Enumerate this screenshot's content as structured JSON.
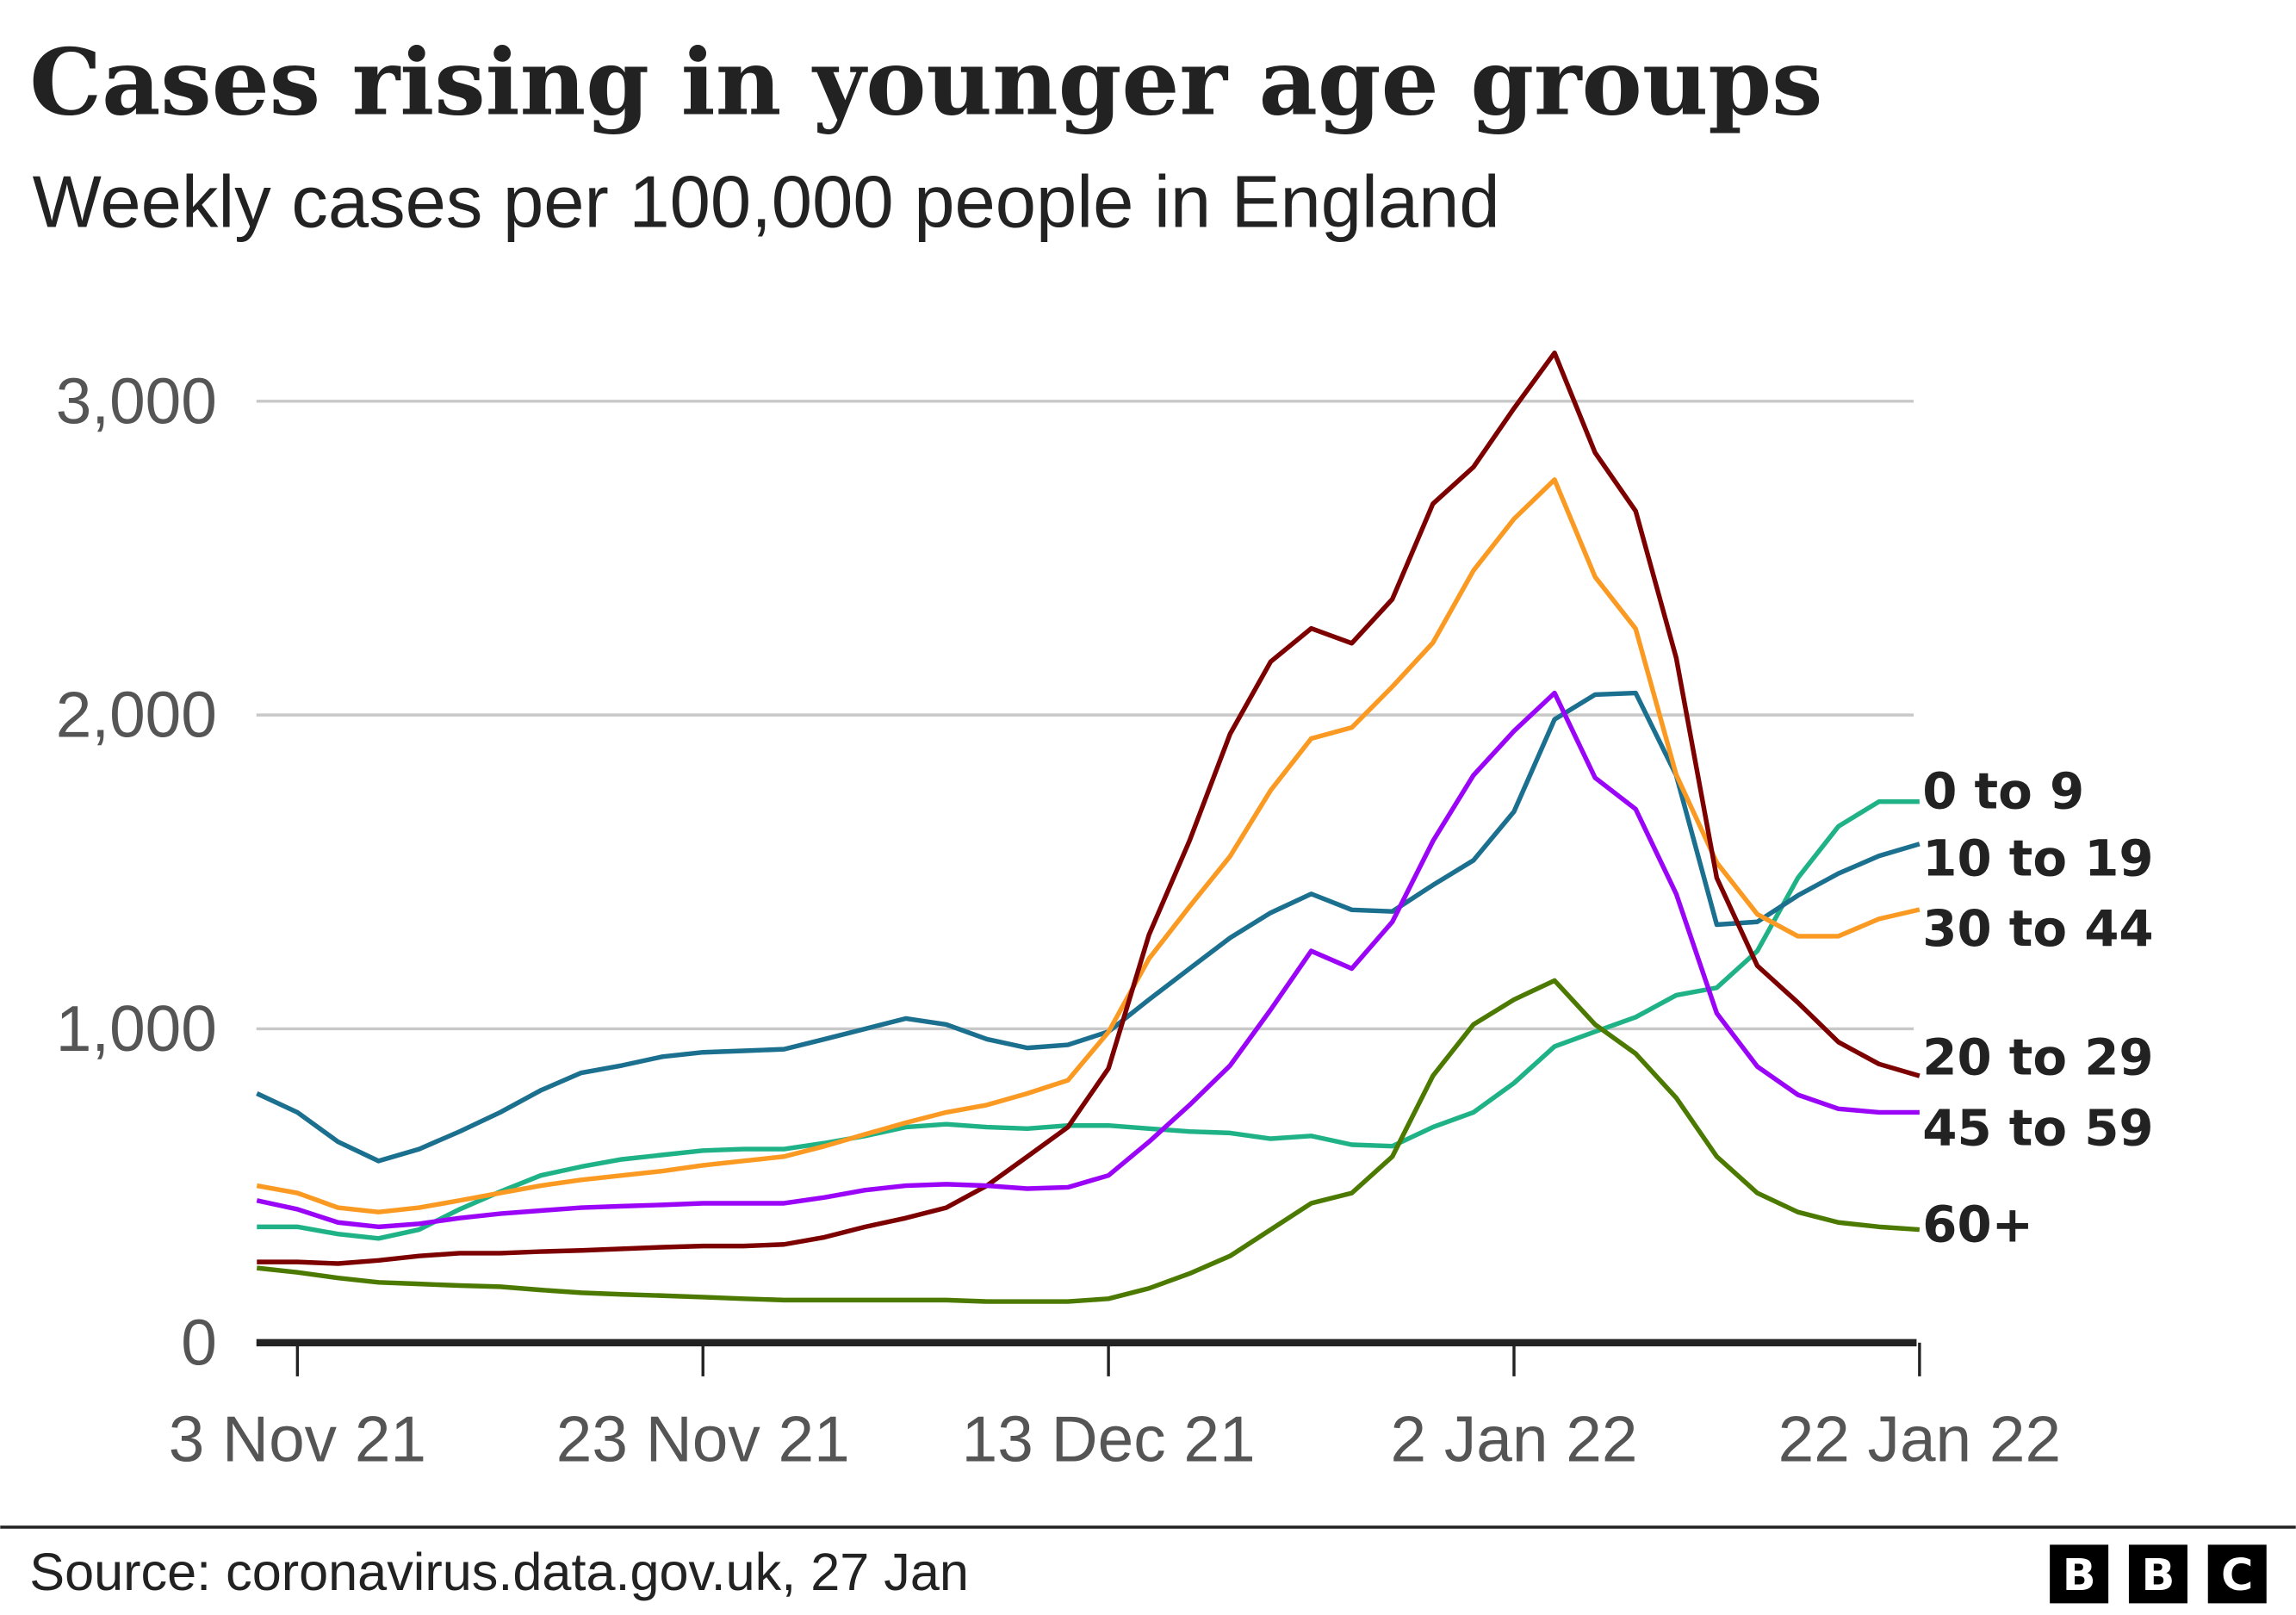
{
  "header": {
    "title": "Cases rising in younger age groups",
    "subtitle": "Weekly cases per 100,000 people in England"
  },
  "footer": {
    "source": "Source: coronavirus.data.gov.uk, 27 Jan",
    "logo_letters": [
      "B",
      "B",
      "C"
    ]
  },
  "chart_data": {
    "type": "line",
    "title": "Cases rising in younger age groups",
    "subtitle": "Weekly cases per 100,000 people in England",
    "xlabel": "",
    "ylabel": "",
    "ylim": [
      0,
      3000
    ],
    "yticks": [
      0,
      1000,
      2000,
      3000
    ],
    "ytick_labels": [
      "0",
      "1,000",
      "2,000",
      "3,000"
    ],
    "xticks": [
      "2021-11-03",
      "2021-11-23",
      "2021-12-13",
      "2022-01-02",
      "2022-01-22"
    ],
    "xtick_labels": [
      "3 Nov 21",
      "23 Nov 21",
      "13 Dec 21",
      "2 Jan 22",
      "22 Jan 22"
    ],
    "grid": "horizontal",
    "legend": "direct labels at right",
    "x": [
      "2021-11-01",
      "2021-11-03",
      "2021-11-05",
      "2021-11-07",
      "2021-11-09",
      "2021-11-11",
      "2021-11-13",
      "2021-11-15",
      "2021-11-17",
      "2021-11-19",
      "2021-11-21",
      "2021-11-23",
      "2021-11-25",
      "2021-11-27",
      "2021-11-29",
      "2021-12-01",
      "2021-12-03",
      "2021-12-05",
      "2021-12-07",
      "2021-12-09",
      "2021-12-11",
      "2021-12-13",
      "2021-12-15",
      "2021-12-17",
      "2021-12-19",
      "2021-12-21",
      "2021-12-23",
      "2021-12-25",
      "2021-12-27",
      "2021-12-29",
      "2021-12-31",
      "2022-01-02",
      "2022-01-04",
      "2022-01-06",
      "2022-01-08",
      "2022-01-10",
      "2022-01-12",
      "2022-01-14",
      "2022-01-16",
      "2022-01-18",
      "2022-01-20",
      "2022-01-22"
    ],
    "series": [
      {
        "name": "0 to 9",
        "color": "#1fb287",
        "values": [
          369,
          369,
          346,
          332,
          360,
          425,
          481,
          533,
          561,
          584,
          598,
          612,
          617,
          617,
          636,
          659,
          687,
          696,
          687,
          682,
          692,
          692,
          682,
          673,
          668,
          650,
          659,
          631,
          626,
          687,
          734,
          827,
          944,
          991,
          1037,
          1107,
          1131,
          1248,
          1481,
          1645,
          1724,
          1724
        ]
      },
      {
        "name": "10 to 19",
        "color": "#1b6f8f",
        "values": [
          794,
          734,
          640,
          579,
          617,
          673,
          734,
          804,
          860,
          883,
          911,
          925,
          930,
          935,
          967,
          1000,
          1033,
          1014,
          967,
          939,
          949,
          991,
          1093,
          1192,
          1290,
          1370,
          1430,
          1379,
          1374,
          1458,
          1537,
          1692,
          1986,
          2065,
          2070,
          1808,
          1332,
          1341,
          1425,
          1495,
          1551,
          1589
        ]
      },
      {
        "name": "30 to 44",
        "color": "#fb9a22",
        "values": [
          500,
          477,
          430,
          416,
          430,
          453,
          477,
          500,
          519,
          533,
          547,
          565,
          579,
          593,
          626,
          664,
          701,
          734,
          757,
          794,
          836,
          990,
          1224,
          1390,
          1550,
          1760,
          1925,
          1960,
          2090,
          2230,
          2460,
          2625,
          2750,
          2440,
          2275,
          1810,
          1530,
          1365,
          1295,
          1295,
          1350,
          1380
        ]
      },
      {
        "name": "20 to 29",
        "color": "#7d0000",
        "values": [
          257,
          257,
          252,
          262,
          276,
          285,
          285,
          290,
          294,
          299,
          304,
          308,
          308,
          313,
          336,
          369,
          397,
          430,
          500,
          593,
          687,
          874,
          1300,
          1600,
          1940,
          2170,
          2276,
          2229,
          2369,
          2673,
          2790,
          2977,
          3154,
          2836,
          2650,
          2182,
          1481,
          1201,
          1084,
          958,
          888,
          850
        ]
      },
      {
        "name": "45 to 59",
        "color": "#9b05f7",
        "values": [
          453,
          425,
          383,
          369,
          379,
          397,
          411,
          421,
          430,
          435,
          439,
          444,
          444,
          444,
          463,
          486,
          500,
          505,
          500,
          491,
          495,
          533,
          640,
          757,
          883,
          1061,
          1248,
          1192,
          1341,
          1598,
          1808,
          1949,
          2070,
          1800,
          1700,
          1430,
          1050,
          880,
          790,
          745,
          734,
          734
        ]
      },
      {
        "name": "60+",
        "color": "#4c7a00",
        "values": [
          238,
          224,
          206,
          192,
          187,
          182,
          178,
          168,
          159,
          154,
          150,
          145,
          140,
          136,
          136,
          136,
          136,
          136,
          131,
          131,
          131,
          140,
          173,
          220,
          276,
          360,
          444,
          477,
          593,
          850,
          1014,
          1093,
          1154,
          1014,
          921,
          780,
          593,
          477,
          416,
          383,
          369,
          360
        ]
      }
    ]
  }
}
